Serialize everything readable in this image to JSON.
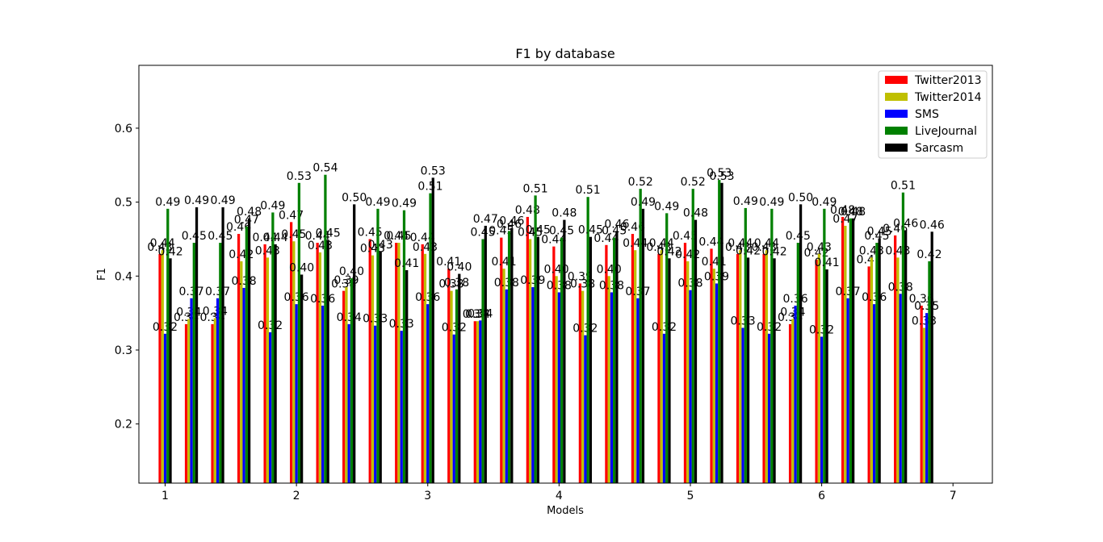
{
  "chart_data": {
    "type": "bar",
    "title": "F1 by database",
    "xlabel": "Models",
    "ylabel": "F1",
    "xlim": [
      0.8,
      7.3
    ],
    "ylim": [
      0.12,
      0.685
    ],
    "xticks": [
      1,
      2,
      3,
      4,
      5,
      6,
      7
    ],
    "yticks": [
      0.2,
      0.3,
      0.4,
      0.5,
      0.6
    ],
    "xtick_labels": [
      "1",
      "2",
      "3",
      "4",
      "5",
      "6",
      "7"
    ],
    "ytick_labels": [
      "0.2",
      "0.3",
      "0.4",
      "0.5",
      "0.6"
    ],
    "grid": false,
    "legend_position": "upper right",
    "group_x": [
      1.0,
      1.2,
      1.4,
      1.6,
      1.8,
      2.0,
      2.2,
      2.4,
      2.6,
      2.8,
      3.0,
      3.2,
      3.4,
      3.6,
      3.8,
      4.0,
      4.2,
      4.4,
      4.6,
      4.8,
      5.0,
      5.2,
      5.4,
      5.6,
      5.8,
      6.0,
      6.2,
      6.4,
      6.6
    ],
    "series": [
      {
        "name": "Twitter2013",
        "color": "#ff0000",
        "values": [
          0.43,
          0.335,
          0.335,
          0.457,
          0.443,
          0.473,
          0.445,
          0.38,
          0.45,
          0.445,
          0.443,
          0.41,
          0.339,
          0.452,
          0.48,
          0.44,
          0.39,
          0.442,
          0.457,
          0.43,
          0.445,
          0.437,
          0.43,
          0.43,
          0.335,
          0.422,
          0.48,
          0.413,
          0.455
        ],
        "labels": [
          "0.43",
          "0.34",
          "0.34",
          "0.46",
          "0.44",
          "0.47",
          "0.44",
          "0.38",
          "0.45",
          "0.44",
          "0.44",
          "0.41",
          "0.34",
          "0.45",
          "0.48",
          "0.44",
          "0.39",
          "0.44",
          "0.46",
          "0.43",
          "0.45",
          "0.44",
          "0.43",
          "0.43",
          "0.34",
          "0.42",
          "0.48",
          "0.41",
          "0.46"
        ]
      },
      {
        "name": "Twitter2014",
        "color": "#bfbf00",
        "values": [
          0.435,
          0.342,
          0.343,
          0.42,
          0.425,
          0.447,
          0.432,
          0.385,
          0.428,
          0.445,
          0.43,
          0.38,
          0.339,
          0.41,
          0.45,
          0.4,
          0.38,
          0.4,
          0.435,
          0.435,
          0.42,
          0.41,
          0.435,
          0.435,
          0.342,
          0.43,
          0.468,
          0.425,
          0.425
        ],
        "labels": [
          "0.44",
          "0.34",
          "0.34",
          "0.42",
          "0.43",
          "0.45",
          "0.43",
          "0.39",
          "0.43",
          "0.45",
          "0.43",
          "0.38",
          "0.34",
          "0.41",
          "0.45",
          "0.40",
          "0.38",
          "0.40",
          "0.44",
          "0.44",
          "0.42",
          "0.41",
          "0.44",
          "0.44",
          "0.34",
          "0.43",
          "0.47",
          "0.43",
          "0.43"
        ]
      },
      {
        "name": "SMS",
        "color": "#0000ff",
        "values": [
          0.322,
          0.37,
          0.37,
          0.384,
          0.324,
          0.362,
          0.36,
          0.335,
          0.333,
          0.326,
          0.362,
          0.321,
          0.34,
          0.382,
          0.385,
          0.378,
          0.32,
          0.378,
          0.37,
          0.322,
          0.381,
          0.39,
          0.33,
          0.322,
          0.36,
          0.318,
          0.37,
          0.362,
          0.376
        ],
        "labels": [
          "0.32",
          "0.37",
          "0.37",
          "0.38",
          "0.32",
          "0.36",
          "0.36",
          "0.34",
          "0.33",
          "0.33",
          "0.36",
          "0.32",
          "0.34",
          "0.38",
          "0.39",
          "0.38",
          "0.32",
          "0.38",
          "0.37",
          "0.32",
          "0.38",
          "0.39",
          "0.33",
          "0.32",
          "0.36",
          "0.32",
          "0.37",
          "0.36",
          "0.38"
        ]
      },
      {
        "name": "LiveJournal",
        "color": "#008000",
        "values": [
          0.491,
          0.445,
          0.445,
          0.467,
          0.486,
          0.526,
          0.537,
          0.397,
          0.491,
          0.489,
          0.512,
          0.382,
          0.45,
          0.461,
          0.509,
          0.452,
          0.507,
          0.452,
          0.518,
          0.485,
          0.518,
          0.53,
          0.492,
          0.491,
          0.445,
          0.491,
          0.478,
          0.445,
          0.513
        ],
        "labels": [
          "0.49",
          "0.45",
          "0.45",
          "0.47",
          "0.49",
          "0.53",
          "0.54",
          "0.40",
          "0.49",
          "0.49",
          "0.51",
          "0.38",
          "0.45",
          "0.46",
          "0.51",
          "0.45",
          "0.51",
          "0.45",
          "0.52",
          "0.49",
          "0.52",
          "0.53",
          "0.49",
          "0.49",
          "0.45",
          "0.49",
          "0.48",
          "0.45",
          "0.51"
        ]
      },
      {
        "name": "Sarcasm",
        "color": "#000000",
        "values": [
          0.424,
          0.493,
          0.493,
          0.478,
          0.443,
          0.402,
          0.449,
          0.497,
          0.433,
          0.408,
          0.533,
          0.403,
          0.468,
          0.465,
          0.453,
          0.476,
          0.453,
          0.461,
          0.491,
          0.424,
          0.476,
          0.526,
          0.425,
          0.424,
          0.497,
          0.409,
          0.478,
          0.451,
          0.462
        ],
        "labels": [
          "0.42",
          "0.49",
          "0.49",
          "0.48",
          "0.44",
          "0.40",
          "0.45",
          "0.50",
          "0.43",
          "0.41",
          "0.53",
          "0.40",
          "0.47",
          "0.46",
          "0.45",
          "0.48",
          "0.45",
          "0.46",
          "0.49",
          "0.42",
          "0.48",
          "0.53",
          "0.42",
          "0.42",
          "0.50",
          "0.41",
          "0.48",
          "0.45",
          "0.46"
        ]
      }
    ]
  },
  "extra_right_group": {
    "values": [
      0.36,
      0.33,
      0.35,
      0.42,
      0.46
    ],
    "labels": [
      "0.36",
      "0.33",
      "0.35",
      "0.42",
      "0.46"
    ]
  }
}
